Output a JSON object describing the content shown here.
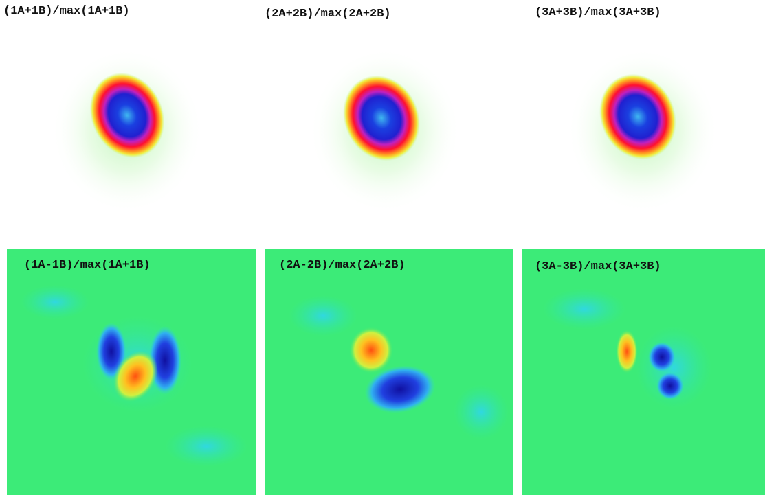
{
  "panels": [
    {
      "label": "(1A+1B)/max(1A+1B)"
    },
    {
      "label": "(2A+2B)/max(2A+2B)"
    },
    {
      "label": "(3A+3B)/max(3A+3B)"
    },
    {
      "label": "(1A-1B)/max(1A+1B)"
    },
    {
      "label": "(2A-2B)/max(2A+2B)"
    },
    {
      "label": "(3A-3B)/max(3A+3B)"
    }
  ]
}
